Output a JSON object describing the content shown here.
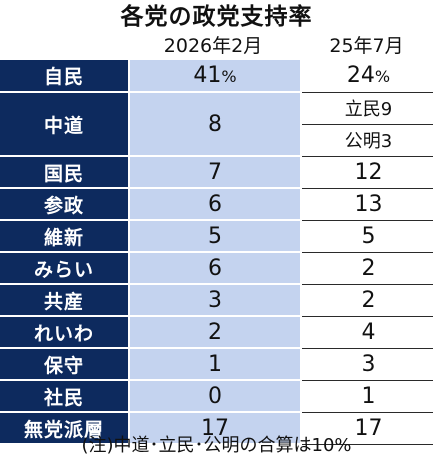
{
  "title": "各党の政党支持率",
  "columns": [
    "2026年2月",
    "25年7月"
  ],
  "percent_sign": "%",
  "rows": [
    {
      "party": "自民",
      "current": "41",
      "previous": "24"
    },
    {
      "party": "中道",
      "current": "8",
      "previous_sub": [
        "立民9",
        "公明3"
      ]
    },
    {
      "party": "国民",
      "current": "7",
      "previous": "12"
    },
    {
      "party": "参政",
      "current": "6",
      "previous": "13"
    },
    {
      "party": "維新",
      "current": "5",
      "previous": "5"
    },
    {
      "party": "みらい",
      "current": "6",
      "previous": "2"
    },
    {
      "party": "共産",
      "current": "3",
      "previous": "2"
    },
    {
      "party": "れいわ",
      "current": "2",
      "previous": "4"
    },
    {
      "party": "保守",
      "current": "1",
      "previous": "3"
    },
    {
      "party": "社民",
      "current": "0",
      "previous": "1"
    },
    {
      "party": "無党派層",
      "current": "17",
      "previous": "17"
    }
  ],
  "note": "(注)中道･立民･公明の合算は10%",
  "colors": {
    "party_bg": "#0d2a5e",
    "current_bg": "#c4d3ef",
    "previous_bg": "#ffffff"
  },
  "chart_data": {
    "type": "table",
    "title": "各党の政党支持率",
    "categories": [
      "自民",
      "中道",
      "国民",
      "参政",
      "維新",
      "みらい",
      "共産",
      "れいわ",
      "保守",
      "社民",
      "無党派層"
    ],
    "series": [
      {
        "name": "2026年2月",
        "values": [
          41,
          8,
          7,
          6,
          5,
          6,
          3,
          2,
          1,
          0,
          17
        ]
      },
      {
        "name": "25年7月",
        "values": [
          24,
          null,
          12,
          13,
          5,
          2,
          2,
          4,
          3,
          1,
          17
        ]
      }
    ],
    "sub_values": {
      "中道": {
        "立民": 9,
        "公明": 3
      }
    },
    "unit": "%"
  }
}
